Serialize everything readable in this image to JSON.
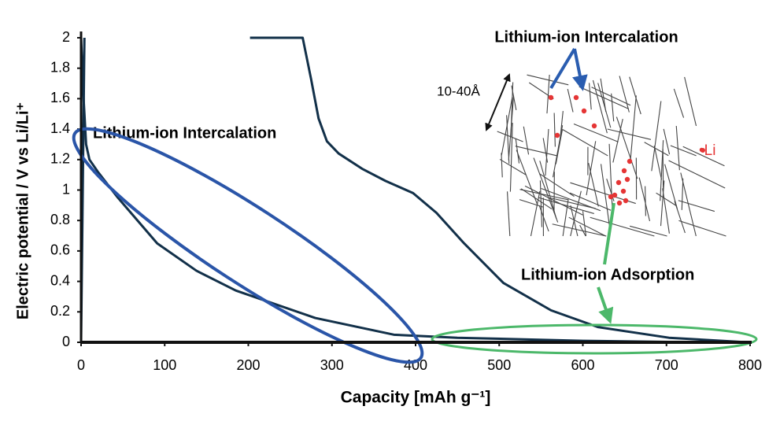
{
  "chart_data": {
    "type": "line",
    "xlabel": "Capacity [mAh g⁻¹]",
    "ylabel": "Electric potential / V vs Li/Li⁺",
    "xlim": [
      0,
      800
    ],
    "xticks": [
      0,
      100,
      200,
      300,
      400,
      500,
      600,
      700,
      800
    ],
    "ylim": [
      0,
      2
    ],
    "yticks": [
      0,
      0.2,
      0.4,
      0.6,
      0.8,
      1,
      1.2,
      1.4,
      1.6,
      1.8,
      2
    ],
    "series": [
      {
        "color": "#123049",
        "x": [
          0,
          3,
          6,
          10,
          20,
          44,
          91,
          138,
          185,
          280,
          374,
          450,
          600,
          740
        ],
        "values": [
          2.0,
          1.6,
          1.3,
          1.2,
          1.12,
          0.95,
          0.65,
          0.47,
          0.34,
          0.16,
          0.05,
          0.03,
          0.01,
          0
        ]
      },
      {
        "color": "#123049",
        "x": [
          202,
          265,
          275,
          284,
          294,
          308,
          336,
          364,
          397,
          425,
          458,
          505,
          562,
          618,
          703,
          797
        ],
        "values": [
          2.0,
          2.0,
          1.73,
          1.47,
          1.32,
          1.24,
          1.14,
          1.06,
          0.98,
          0.85,
          0.65,
          0.39,
          0.21,
          0.1,
          0.03,
          0
        ]
      },
      {
        "color": "#123049",
        "x": [
          0,
          2,
          4
        ],
        "values": [
          0,
          1.0,
          2.0
        ]
      }
    ],
    "annotations": [
      "Lithium-ion Intercalation",
      "Lithium-ion Intercalation",
      "Lithium-ion Adsorption",
      "10-40Å",
      "•Li"
    ]
  }
}
